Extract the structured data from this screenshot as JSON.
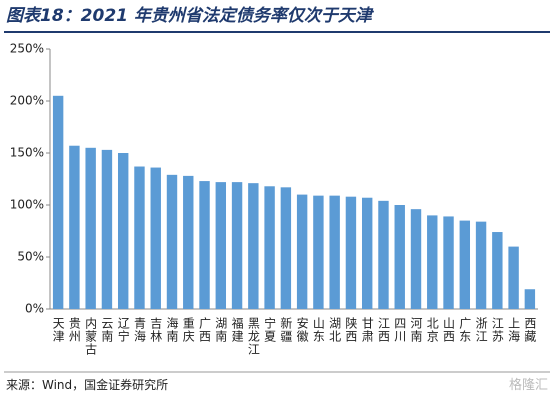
{
  "chart_data": {
    "type": "bar",
    "title": "图表18：2021 年贵州省法定债务率仅次于天津",
    "categories": [
      "天津",
      "贵州",
      "内蒙古",
      "云南",
      "辽宁",
      "青海",
      "吉林",
      "海南",
      "重庆",
      "广西",
      "湖南",
      "福建",
      "黑龙江",
      "宁夏",
      "新疆",
      "安徽",
      "山东",
      "湖北",
      "陕西",
      "甘肃",
      "江西",
      "四川",
      "河南",
      "北京",
      "山西",
      "广东",
      "浙江",
      "江苏",
      "上海",
      "西藏"
    ],
    "values": [
      205,
      157,
      155,
      153,
      150,
      137,
      136,
      129,
      128,
      123,
      122,
      122,
      121,
      118,
      117,
      110,
      109,
      109,
      108,
      107,
      104,
      100,
      96,
      90,
      89,
      85,
      84,
      74,
      60,
      19
    ],
    "color": "#5b9bd5",
    "ylim": [
      0,
      250
    ],
    "yticks": [
      {
        "value": 0,
        "label": "0%"
      },
      {
        "value": 50,
        "label": "50%"
      },
      {
        "value": 100,
        "label": "100%"
      },
      {
        "value": 150,
        "label": "150%"
      },
      {
        "value": 200,
        "label": "200%"
      },
      {
        "value": 250,
        "label": "250%"
      }
    ],
    "grid": false,
    "source": "来源：Wind，国金证券研究所",
    "watermark": "格隆汇"
  }
}
